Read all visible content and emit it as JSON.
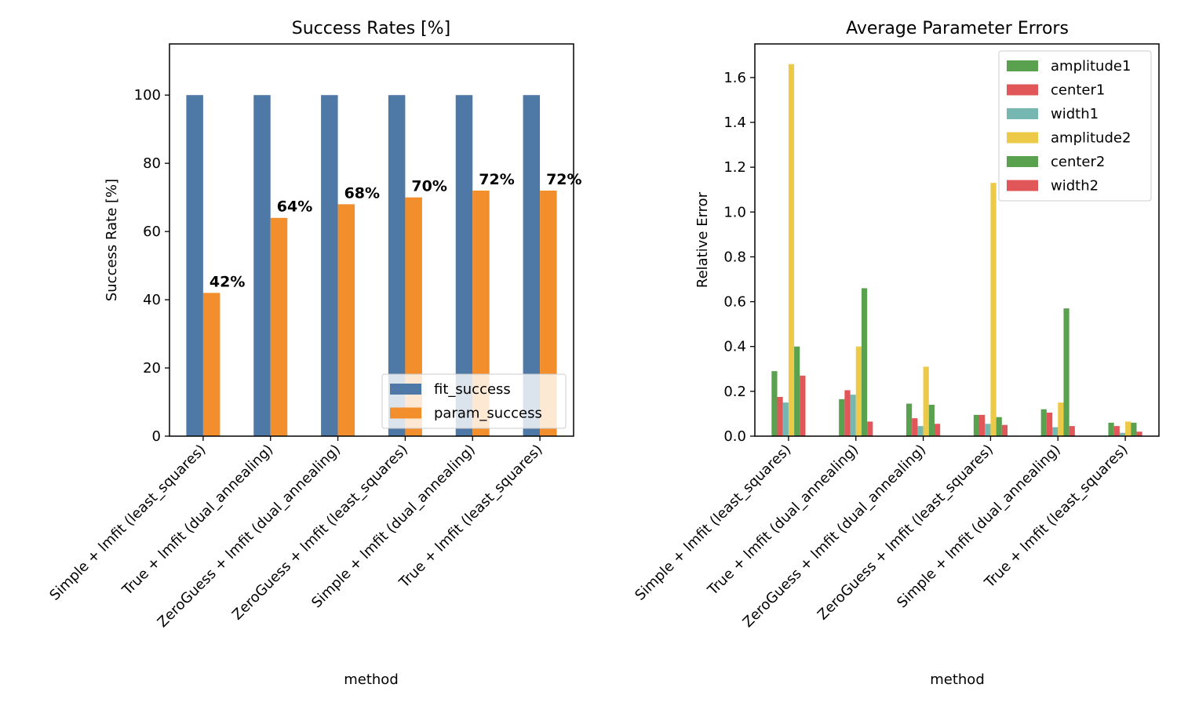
{
  "chart_data": [
    {
      "type": "bar",
      "title": "Success Rates [%]",
      "xlabel": "method",
      "ylabel": "Success Rate [%]",
      "ylim": [
        0,
        115
      ],
      "yticks": [
        0,
        20,
        40,
        60,
        80,
        100
      ],
      "categories": [
        "Simple + lmfit (least_squares)",
        "True + lmfit (dual_annealing)",
        "ZeroGuess + lmfit (dual_annealing)",
        "ZeroGuess + lmfit (least_squares)",
        "Simple + lmfit (dual_annealing)",
        "True + lmfit (least_squares)"
      ],
      "series": [
        {
          "name": "fit_success",
          "color": "#4e79a7",
          "values": [
            100,
            100,
            100,
            100,
            100,
            100
          ]
        },
        {
          "name": "param_success",
          "color": "#f28e2b",
          "values": [
            42,
            64,
            68,
            70,
            72,
            72
          ]
        }
      ],
      "data_labels": [
        "42%",
        "64%",
        "68%",
        "70%",
        "72%",
        "72%"
      ],
      "legend": "lower-right",
      "grid": false
    },
    {
      "type": "bar",
      "title": "Average Parameter Errors",
      "xlabel": "method",
      "ylabel": "Relative Error",
      "ylim": [
        0,
        1.75
      ],
      "yticks": [
        "0.0",
        "0.2",
        "0.4",
        "0.6",
        "0.8",
        "1.0",
        "1.2",
        "1.4",
        "1.6"
      ],
      "categories": [
        "Simple + lmfit (least_squares)",
        "True + lmfit (dual_annealing)",
        "ZeroGuess + lmfit (dual_annealing)",
        "ZeroGuess + lmfit (least_squares)",
        "Simple + lmfit (dual_annealing)",
        "True + lmfit (least_squares)"
      ],
      "series": [
        {
          "name": "amplitude1",
          "color": "#59a14f",
          "values": [
            0.29,
            0.165,
            0.145,
            0.095,
            0.12,
            0.06
          ]
        },
        {
          "name": "center1",
          "color": "#e15759",
          "values": [
            0.175,
            0.205,
            0.08,
            0.095,
            0.105,
            0.045
          ]
        },
        {
          "name": "width1",
          "color": "#76b7b2",
          "values": [
            0.15,
            0.185,
            0.045,
            0.055,
            0.04,
            0.015
          ]
        },
        {
          "name": "amplitude2",
          "color": "#edc948",
          "values": [
            1.66,
            0.4,
            0.31,
            1.13,
            0.15,
            0.065
          ]
        },
        {
          "name": "center2",
          "color": "#59a14f",
          "values": [
            0.4,
            0.66,
            0.14,
            0.085,
            0.57,
            0.06
          ]
        },
        {
          "name": "width2",
          "color": "#e15759",
          "values": [
            0.27,
            0.065,
            0.055,
            0.05,
            0.045,
            0.02
          ]
        }
      ],
      "legend": "upper-right",
      "grid": false
    }
  ]
}
